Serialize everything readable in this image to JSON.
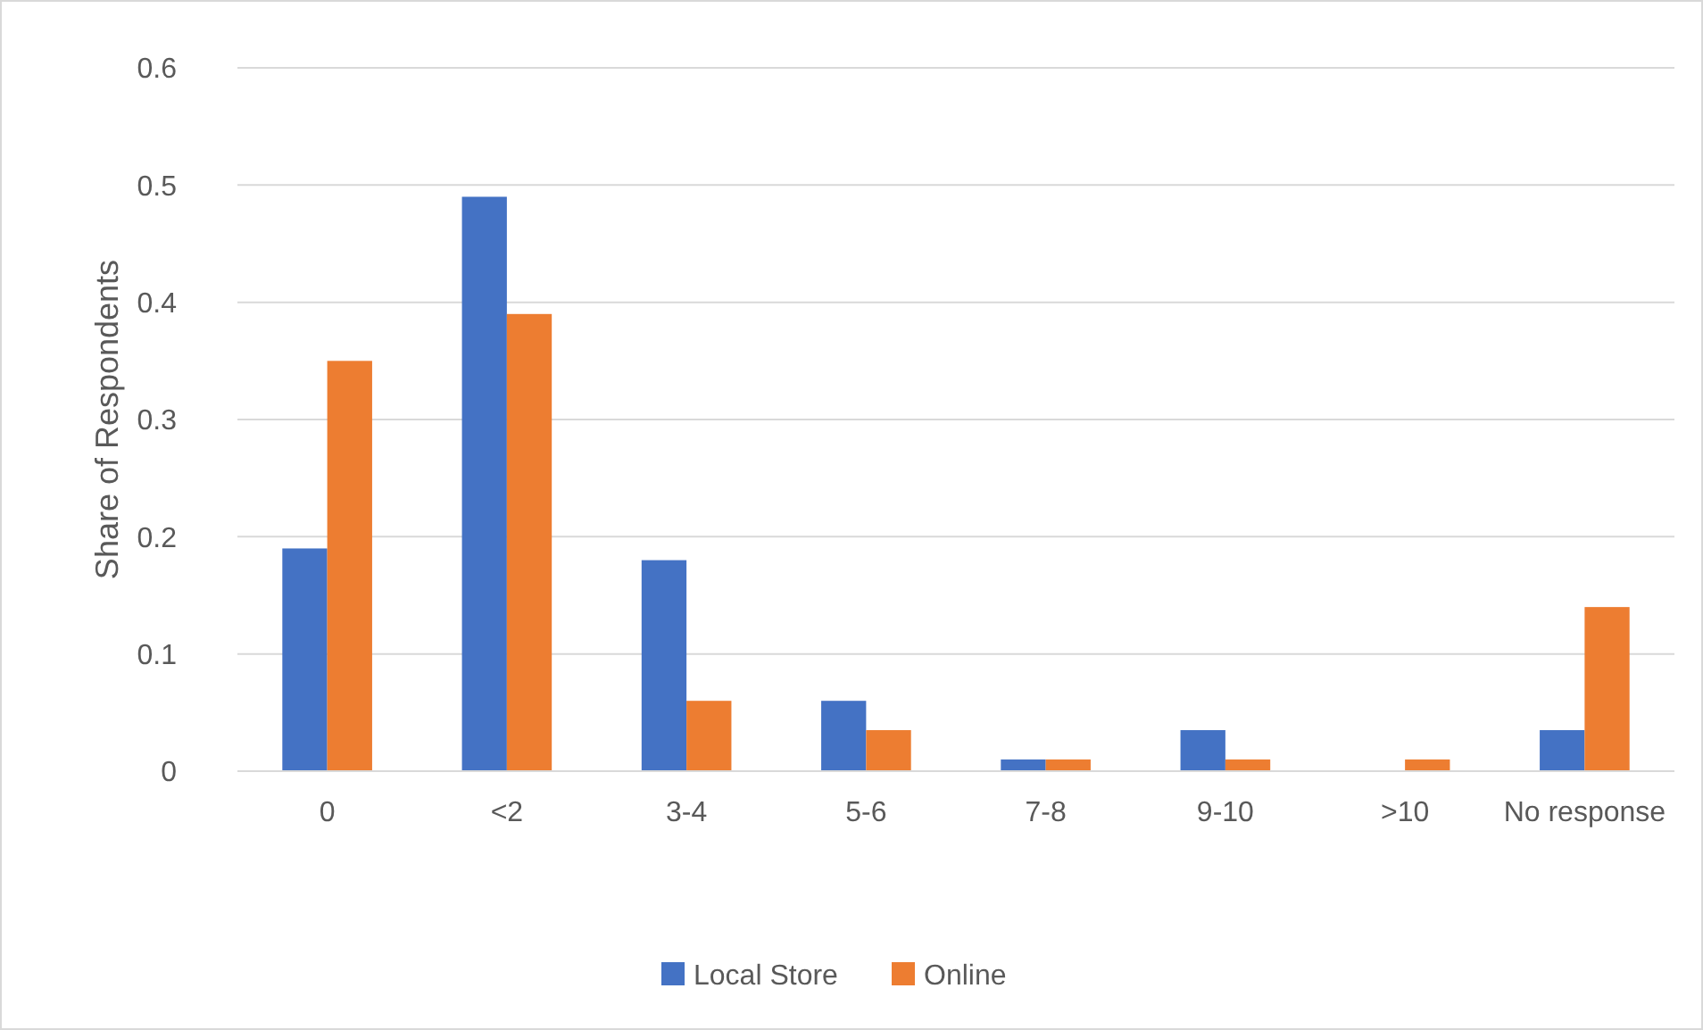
{
  "chart_data": {
    "type": "bar",
    "ylabel": "Share of Respondents",
    "categories": [
      "0",
      "<2",
      "3-4",
      "5-6",
      "7-8",
      "9-10",
      ">10",
      "No response"
    ],
    "series": [
      {
        "name": "Local Store",
        "color": "#4472c4",
        "values": [
          0.19,
          0.49,
          0.18,
          0.06,
          0.01,
          0.035,
          0,
          0.035
        ]
      },
      {
        "name": "Online",
        "color": "#ed7d31",
        "values": [
          0.35,
          0.39,
          0.06,
          0.035,
          0.01,
          0.01,
          0.01,
          0.14
        ]
      }
    ],
    "ylim": [
      0,
      0.6
    ],
    "yticks": [
      0,
      0.1,
      0.2,
      0.3,
      0.4,
      0.5,
      0.6
    ],
    "grid": "y",
    "legend": "bottom"
  }
}
